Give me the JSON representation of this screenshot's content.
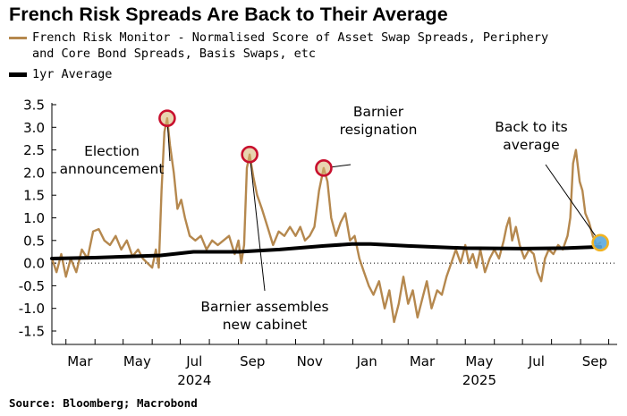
{
  "title": "French Risk Spreads Are Back to Their Average",
  "legend": [
    {
      "line1": "French Risk Monitor - Normalised Score of Asset Swap Spreads, Periphery",
      "line2": "and Core Bond Spreads, Basis Swaps, etc",
      "color": "#b5884e"
    },
    {
      "line1": "1yr Average",
      "line2": "",
      "color": "#000000"
    }
  ],
  "source": "Source: Bloomberg; Macrobond",
  "chart_data": {
    "type": "line",
    "title": "French Risk Spreads Are Back to Their Average",
    "ylim": [
      -1.5,
      3.5
    ],
    "yticks": [
      "3.5",
      "3.0",
      "2.5",
      "2.0",
      "1.5",
      "1.0",
      "0.5",
      "0.0",
      "-0.5",
      "-1.0",
      "-1.5"
    ],
    "ytick_values": [
      3.5,
      3.0,
      2.5,
      2.0,
      1.5,
      1.0,
      0.5,
      0.0,
      -0.5,
      -1.0,
      -1.5
    ],
    "xlim": [
      "2024-02-15",
      "2025-10-10"
    ],
    "xticks": [
      {
        "label": "Mar",
        "date": "2024-03-01"
      },
      {
        "label": "May",
        "date": "2024-05-01"
      },
      {
        "label": "Jul",
        "date": "2024-07-01"
      },
      {
        "label": "Sep",
        "date": "2024-09-01"
      },
      {
        "label": "Nov",
        "date": "2024-11-01"
      },
      {
        "label": "Jan",
        "date": "2025-01-01"
      },
      {
        "label": "Mar",
        "date": "2025-03-01"
      },
      {
        "label": "May",
        "date": "2025-05-01"
      },
      {
        "label": "Jul",
        "date": "2025-07-01"
      },
      {
        "label": "Sep",
        "date": "2025-09-01"
      }
    ],
    "year_labels": [
      {
        "label": "2024",
        "date": "2024-07-01"
      },
      {
        "label": "2025",
        "date": "2025-05-01"
      }
    ],
    "grid": false,
    "series": [
      {
        "name": "French Risk Monitor - Normalised Score of Asset Swap Spreads, Periphery and Core Bond Spreads, Basis Swaps, etc",
        "color": "#b5884e",
        "points": [
          [
            "2024-02-15",
            0.1
          ],
          [
            "2024-02-20",
            -0.2
          ],
          [
            "2024-02-25",
            0.2
          ],
          [
            "2024-03-01",
            -0.3
          ],
          [
            "2024-03-06",
            0.1
          ],
          [
            "2024-03-12",
            -0.2
          ],
          [
            "2024-03-18",
            0.3
          ],
          [
            "2024-03-24",
            0.1
          ],
          [
            "2024-03-30",
            0.7
          ],
          [
            "2024-04-05",
            0.75
          ],
          [
            "2024-04-11",
            0.5
          ],
          [
            "2024-04-17",
            0.4
          ],
          [
            "2024-04-23",
            0.6
          ],
          [
            "2024-04-29",
            0.3
          ],
          [
            "2024-05-05",
            0.5
          ],
          [
            "2024-05-11",
            0.15
          ],
          [
            "2024-05-17",
            0.3
          ],
          [
            "2024-05-22",
            0.1
          ],
          [
            "2024-05-27",
            0.0
          ],
          [
            "2024-06-01",
            -0.1
          ],
          [
            "2024-06-05",
            0.3
          ],
          [
            "2024-06-08",
            -0.1
          ],
          [
            "2024-06-11",
            1.6
          ],
          [
            "2024-06-14",
            2.9
          ],
          [
            "2024-06-17",
            3.2
          ],
          [
            "2024-06-20",
            2.6
          ],
          [
            "2024-06-24",
            2.0
          ],
          [
            "2024-06-28",
            1.2
          ],
          [
            "2024-07-02",
            1.4
          ],
          [
            "2024-07-06",
            1.0
          ],
          [
            "2024-07-11",
            0.6
          ],
          [
            "2024-07-17",
            0.5
          ],
          [
            "2024-07-23",
            0.6
          ],
          [
            "2024-07-29",
            0.3
          ],
          [
            "2024-08-04",
            0.5
          ],
          [
            "2024-08-10",
            0.4
          ],
          [
            "2024-08-16",
            0.5
          ],
          [
            "2024-08-22",
            0.6
          ],
          [
            "2024-08-28",
            0.2
          ],
          [
            "2024-09-01",
            0.5
          ],
          [
            "2024-09-04",
            0.0
          ],
          [
            "2024-09-07",
            0.4
          ],
          [
            "2024-09-10",
            2.1
          ],
          [
            "2024-09-13",
            2.4
          ],
          [
            "2024-09-17",
            1.9
          ],
          [
            "2024-09-21",
            1.5
          ],
          [
            "2024-09-26",
            1.2
          ],
          [
            "2024-10-02",
            0.8
          ],
          [
            "2024-10-08",
            0.4
          ],
          [
            "2024-10-14",
            0.7
          ],
          [
            "2024-10-20",
            0.6
          ],
          [
            "2024-10-26",
            0.8
          ],
          [
            "2024-11-01",
            0.6
          ],
          [
            "2024-11-06",
            0.8
          ],
          [
            "2024-11-11",
            0.5
          ],
          [
            "2024-11-16",
            0.6
          ],
          [
            "2024-11-21",
            0.8
          ],
          [
            "2024-11-26",
            1.6
          ],
          [
            "2024-12-01",
            2.1
          ],
          [
            "2024-12-05",
            1.8
          ],
          [
            "2024-12-09",
            1.0
          ],
          [
            "2024-12-14",
            0.6
          ],
          [
            "2024-12-19",
            0.9
          ],
          [
            "2024-12-24",
            1.1
          ],
          [
            "2024-12-29",
            0.5
          ],
          [
            "2025-01-03",
            0.6
          ],
          [
            "2025-01-08",
            0.1
          ],
          [
            "2025-01-13",
            -0.2
          ],
          [
            "2025-01-18",
            -0.5
          ],
          [
            "2025-01-23",
            -0.7
          ],
          [
            "2025-01-29",
            -0.4
          ],
          [
            "2025-02-04",
            -1.0
          ],
          [
            "2025-02-09",
            -0.6
          ],
          [
            "2025-02-14",
            -1.3
          ],
          [
            "2025-02-19",
            -0.9
          ],
          [
            "2025-02-24",
            -0.3
          ],
          [
            "2025-03-01",
            -0.9
          ],
          [
            "2025-03-06",
            -0.6
          ],
          [
            "2025-03-11",
            -1.2
          ],
          [
            "2025-03-16",
            -0.8
          ],
          [
            "2025-03-21",
            -0.4
          ],
          [
            "2025-03-26",
            -1.0
          ],
          [
            "2025-04-01",
            -0.6
          ],
          [
            "2025-04-06",
            -0.7
          ],
          [
            "2025-04-11",
            -0.3
          ],
          [
            "2025-04-16",
            0.0
          ],
          [
            "2025-04-21",
            0.3
          ],
          [
            "2025-04-26",
            0.0
          ],
          [
            "2025-05-01",
            0.4
          ],
          [
            "2025-05-05",
            0.0
          ],
          [
            "2025-05-09",
            0.2
          ],
          [
            "2025-05-13",
            -0.1
          ],
          [
            "2025-05-17",
            0.3
          ],
          [
            "2025-05-22",
            -0.2
          ],
          [
            "2025-05-27",
            0.1
          ],
          [
            "2025-06-01",
            0.3
          ],
          [
            "2025-06-06",
            0.1
          ],
          [
            "2025-06-11",
            0.5
          ],
          [
            "2025-06-14",
            0.8
          ],
          [
            "2025-06-17",
            1.0
          ],
          [
            "2025-06-20",
            0.5
          ],
          [
            "2025-06-24",
            0.8
          ],
          [
            "2025-06-28",
            0.4
          ],
          [
            "2025-07-03",
            0.1
          ],
          [
            "2025-07-08",
            0.3
          ],
          [
            "2025-07-13",
            0.2
          ],
          [
            "2025-07-17",
            -0.2
          ],
          [
            "2025-07-21",
            -0.4
          ],
          [
            "2025-07-25",
            0.1
          ],
          [
            "2025-07-29",
            0.3
          ],
          [
            "2025-08-03",
            0.2
          ],
          [
            "2025-08-08",
            0.4
          ],
          [
            "2025-08-13",
            0.3
          ],
          [
            "2025-08-18",
            0.6
          ],
          [
            "2025-08-21",
            1.0
          ],
          [
            "2025-08-24",
            2.2
          ],
          [
            "2025-08-27",
            2.5
          ],
          [
            "2025-08-31",
            1.8
          ],
          [
            "2025-09-03",
            1.6
          ],
          [
            "2025-09-06",
            1.1
          ],
          [
            "2025-09-10",
            0.9
          ],
          [
            "2025-09-14",
            0.6
          ],
          [
            "2025-09-18",
            0.4
          ],
          [
            "2025-09-22",
            0.45
          ]
        ]
      },
      {
        "name": "1yr Average",
        "color": "#000000",
        "points": [
          [
            "2024-02-15",
            0.1
          ],
          [
            "2024-04-01",
            0.12
          ],
          [
            "2024-06-10",
            0.17
          ],
          [
            "2024-07-15",
            0.25
          ],
          [
            "2024-09-01",
            0.25
          ],
          [
            "2024-10-15",
            0.3
          ],
          [
            "2024-12-01",
            0.38
          ],
          [
            "2024-12-31",
            0.42
          ],
          [
            "2025-01-20",
            0.42
          ],
          [
            "2025-03-01",
            0.38
          ],
          [
            "2025-05-01",
            0.33
          ],
          [
            "2025-07-01",
            0.32
          ],
          [
            "2025-08-15",
            0.33
          ],
          [
            "2025-09-22",
            0.36
          ]
        ]
      }
    ],
    "annotations": [
      {
        "lines": [
          "Election",
          "announcement"
        ],
        "target": [
          "2024-06-17",
          3.2
        ]
      },
      {
        "lines": [
          "Barnier assembles",
          "new cabinet"
        ],
        "target": [
          "2024-09-13",
          2.4
        ]
      },
      {
        "lines": [
          "Barnier",
          "resignation"
        ],
        "target": [
          "2024-12-01",
          2.1
        ]
      },
      {
        "lines": [
          "Back to its",
          "average"
        ],
        "target": [
          "2025-09-22",
          0.45
        ]
      }
    ]
  }
}
